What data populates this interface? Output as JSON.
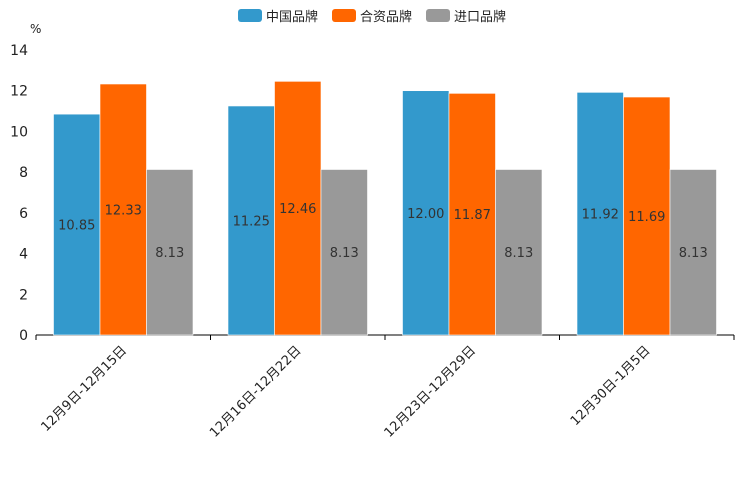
{
  "chart_data": {
    "type": "bar",
    "title": "",
    "ylabel": "%",
    "xlabel": "",
    "ylim": [
      0,
      14
    ],
    "yticks": [
      0,
      2,
      4,
      6,
      8,
      10,
      12,
      14
    ],
    "grid": false,
    "legend_position": "top-center",
    "categories": [
      "12月9日-12月15日",
      "12月16日-12月22日",
      "12月23日-12月29日",
      "12月30日-1月5日"
    ],
    "series": [
      {
        "name": "中国品牌",
        "color": "#3399cc",
        "values": [
          10.85,
          11.25,
          12.0,
          11.92
        ],
        "labels": [
          "10.85",
          "11.25",
          "12.00",
          "11.92"
        ]
      },
      {
        "name": "合资品牌",
        "color": "#ff6600",
        "values": [
          12.33,
          12.46,
          11.87,
          11.69
        ],
        "labels": [
          "12.33",
          "12.46",
          "11.87",
          "11.69"
        ]
      },
      {
        "name": "进口品牌",
        "color": "#999999",
        "values": [
          8.13,
          8.13,
          8.13,
          8.13
        ],
        "labels": [
          "8.13",
          "8.13",
          "8.13",
          "8.13"
        ]
      }
    ]
  }
}
